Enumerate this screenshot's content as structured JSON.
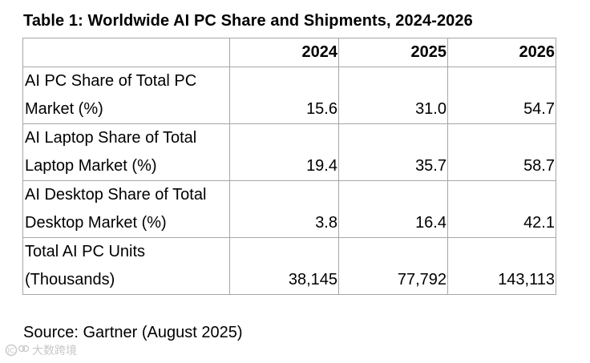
{
  "title": "Table 1: Worldwide AI PC Share and Shipments, 2024-2026",
  "table": {
    "columns": [
      "",
      "2024",
      "2025",
      "2026"
    ],
    "rows": [
      {
        "label_line1": "AI PC Share of Total PC",
        "label_line2": "Market (%)",
        "values": [
          "15.6",
          "31.0",
          "54.7"
        ]
      },
      {
        "label_line1": "AI Laptop Share of Total",
        "label_line2": "Laptop Market (%)",
        "values": [
          "19.4",
          "35.7",
          "58.7"
        ]
      },
      {
        "label_line1": "AI Desktop Share of Total",
        "label_line2": "Desktop Market (%)",
        "values": [
          "3.8",
          "16.4",
          "42.1"
        ]
      },
      {
        "label_line1": "Total AI PC Units",
        "label_line2": "(Thousands)",
        "values": [
          "38,145",
          "77,792",
          "143,113"
        ]
      }
    ]
  },
  "source": "Source: Gartner (August 2025)",
  "watermark": {
    "text": "大数跨境",
    "logo_text": "IC",
    "color": "#9a9a9a"
  }
}
